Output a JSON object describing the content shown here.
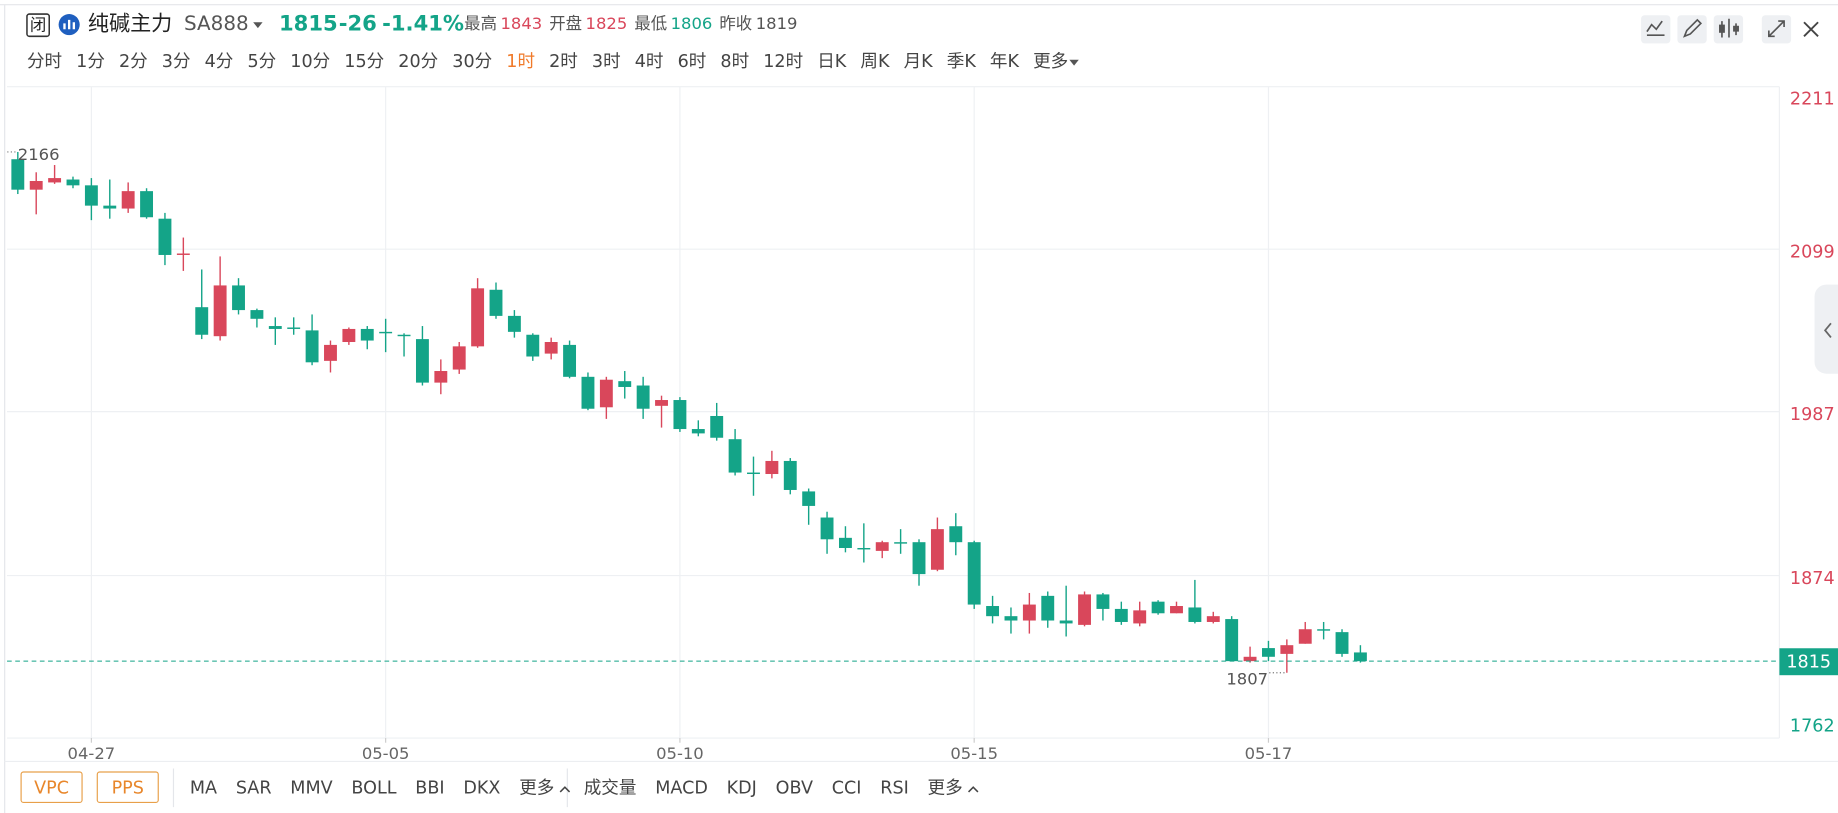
{
  "header": {
    "badge": "闭",
    "name": "纯碱主力",
    "code": "SA888",
    "change": -26,
    "change_pct": "-1.41%",
    "stats": [
      {
        "label": "最高",
        "value": 1843,
        "color": "#d9475b"
      },
      {
        "label": "开盘",
        "value": 1825,
        "color": "#d9475b"
      },
      {
        "label": "最低",
        "value": 1806,
        "color": "#14a488"
      },
      {
        "label": "昨收",
        "value": 1819,
        "color": "#555"
      }
    ]
  },
  "timeframes": {
    "items": [
      "分时",
      "1分",
      "2分",
      "3分",
      "4分",
      "5分",
      "10分",
      "15分",
      "20分",
      "30分",
      "1时",
      "2时",
      "3时",
      "4时",
      "6时",
      "8时",
      "12时",
      "日K",
      "周K",
      "月K",
      "季K",
      "年K",
      "更多"
    ],
    "active": 10
  },
  "indicators": {
    "overlays": [
      "VPC",
      "PPS"
    ],
    "main": [
      "MA",
      "SAR",
      "MMV",
      "BOLL",
      "BBI",
      "DKX",
      "更多"
    ],
    "sub": [
      "成交量",
      "MACD",
      "KDJ",
      "OBV",
      "CCI",
      "RSI",
      "更多"
    ]
  },
  "chart_data": {
    "type": "candlestick",
    "categories": [
      null,
      null,
      null,
      null,
      "04-27",
      null,
      null,
      null,
      null,
      null,
      null,
      null,
      null,
      null,
      null,
      null,
      null,
      null,
      null,
      null,
      "05-05",
      null,
      null,
      null,
      null,
      null,
      null,
      null,
      null,
      null,
      null,
      null,
      null,
      null,
      null,
      null,
      "05-10",
      null,
      null,
      null,
      null,
      null,
      null,
      null,
      null,
      null,
      null,
      null,
      null,
      null,
      null,
      null,
      "05-15",
      null,
      null,
      null,
      null,
      null,
      null,
      null,
      null,
      null,
      null,
      null,
      null,
      null,
      null,
      null,
      "05-17",
      null,
      null,
      null,
      null,
      null
    ],
    "open": [
      2161,
      2140,
      2145,
      2147,
      2143,
      2129,
      2127,
      2139,
      2120,
      2095,
      2059,
      2039,
      2074,
      2057,
      2046,
      2045,
      2043,
      2022,
      2035,
      2044,
      2042,
      2040,
      2037,
      2007,
      2016,
      2032,
      2071,
      2053,
      2040,
      2027,
      2033,
      2011,
      1990,
      2008,
      2005,
      1991,
      1995,
      1975,
      1984,
      1968,
      1945,
      1944,
      1953,
      1932,
      1914,
      1900,
      1893,
      1891,
      1897,
      1897,
      1878,
      1908,
      1897,
      1853,
      1846,
      1843,
      1860,
      1843,
      1840,
      1861,
      1851,
      1841,
      1856,
      1848,
      1852,
      1842,
      1844,
      1815,
      1824,
      1820,
      1827,
      1837,
      1835,
      1821
    ],
    "high": [
      2166,
      2152,
      2157,
      2149,
      2148,
      2147,
      2145,
      2141,
      2124,
      2107,
      2085,
      2094,
      2079,
      2058,
      2052,
      2052,
      2054,
      2036,
      2045,
      2046,
      2051,
      2041,
      2046,
      2023,
      2035,
      2079,
      2076,
      2057,
      2041,
      2038,
      2036,
      2014,
      2011,
      2015,
      2011,
      1998,
      1997,
      1981,
      1993,
      1975,
      1956,
      1960,
      1955,
      1934,
      1918,
      1908,
      1910,
      1898,
      1906,
      1899,
      1914,
      1917,
      1898,
      1860,
      1852,
      1862,
      1863,
      1867,
      1863,
      1862,
      1856,
      1856,
      1857,
      1856,
      1871,
      1849,
      1846,
      1825,
      1829,
      1830,
      1842,
      1842,
      1837,
      1826
    ],
    "low": [
      2137,
      2123,
      2144,
      2141,
      2119,
      2120,
      2124,
      2120,
      2088,
      2084,
      2037,
      2036,
      2054,
      2045,
      2033,
      2040,
      2019,
      2014,
      2033,
      2030,
      2028,
      2025,
      2005,
      1999,
      2013,
      2031,
      2051,
      2038,
      2022,
      2023,
      2010,
      1988,
      1982,
      1996,
      1982,
      1976,
      1973,
      1970,
      1967,
      1943,
      1929,
      1941,
      1930,
      1909,
      1889,
      1890,
      1883,
      1886,
      1889,
      1867,
      1877,
      1888,
      1851,
      1841,
      1834,
      1834,
      1838,
      1832,
      1839,
      1843,
      1840,
      1839,
      1847,
      1848,
      1841,
      1841,
      1815,
      1814,
      1815,
      1807,
      1827,
      1830,
      1818,
      1814
    ],
    "close": [
      2140,
      2146,
      2148,
      2143,
      2129,
      2127,
      2139,
      2121,
      2095,
      2096,
      2040,
      2074,
      2057,
      2051,
      2044,
      2044,
      2021,
      2033,
      2044,
      2036,
      2041,
      2039,
      2007,
      2015,
      2032,
      2072,
      2053,
      2042,
      2025,
      2035,
      2011,
      1989,
      2009,
      2004,
      1989,
      1995,
      1975,
      1972,
      1969,
      1945,
      1944,
      1953,
      1933,
      1922,
      1899,
      1893,
      1892,
      1897,
      1896,
      1875,
      1906,
      1897,
      1854,
      1846,
      1843,
      1854,
      1843,
      1841,
      1861,
      1851,
      1842,
      1850,
      1848,
      1853,
      1842,
      1846,
      1815,
      1818,
      1818,
      1826,
      1837,
      1836,
      1820,
      1815
    ],
    "up_color": "#d9475b",
    "down_color": "#14a488",
    "ylim": [
      1762,
      2211
    ],
    "yticks": [
      2211,
      2099,
      1987,
      1874,
      1762
    ],
    "grid": true
  }
}
